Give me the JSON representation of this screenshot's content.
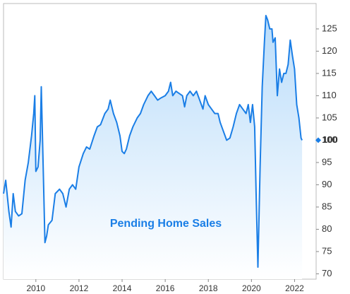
{
  "chart_data": {
    "type": "line",
    "title": "Pending Home Sales",
    "color": "#1a7ee6",
    "fill": true,
    "x": [
      2008.5,
      2008.6,
      2008.75,
      2008.85,
      2008.95,
      2009.05,
      2009.2,
      2009.35,
      2009.5,
      2009.65,
      2009.8,
      2009.9,
      2009.95,
      2010.0,
      2010.1,
      2010.2,
      2010.25,
      2010.33,
      2010.42,
      2010.5,
      2010.58,
      2010.75,
      2010.9,
      2011.1,
      2011.25,
      2011.4,
      2011.55,
      2011.7,
      2011.85,
      2012.0,
      2012.2,
      2012.35,
      2012.5,
      2012.7,
      2012.85,
      2013.0,
      2013.2,
      2013.35,
      2013.45,
      2013.6,
      2013.75,
      2013.9,
      2014.0,
      2014.1,
      2014.2,
      2014.35,
      2014.5,
      2014.7,
      2014.85,
      2015.0,
      2015.2,
      2015.35,
      2015.5,
      2015.65,
      2015.8,
      2016.0,
      2016.15,
      2016.25,
      2016.35,
      2016.5,
      2016.65,
      2016.8,
      2016.9,
      2017.0,
      2017.15,
      2017.3,
      2017.45,
      2017.6,
      2017.75,
      2017.85,
      2018.0,
      2018.15,
      2018.3,
      2018.45,
      2018.55,
      2018.7,
      2018.85,
      2019.0,
      2019.15,
      2019.3,
      2019.45,
      2019.6,
      2019.75,
      2019.85,
      2019.95,
      2020.05,
      2020.15,
      2020.22,
      2020.3,
      2020.4,
      2020.5,
      2020.6,
      2020.67,
      2020.75,
      2020.85,
      2020.95,
      2021.0,
      2021.1,
      2021.2,
      2021.3,
      2021.4,
      2021.5,
      2021.6,
      2021.7,
      2021.8,
      2021.9,
      2022.0,
      2022.1,
      2022.2,
      2022.3,
      2022.35
    ],
    "values": [
      88,
      91,
      84,
      80.5,
      88,
      84,
      83,
      83.5,
      91,
      95,
      101,
      106,
      110,
      93,
      94,
      100,
      112,
      96,
      77,
      78.5,
      81,
      82,
      88,
      89,
      88,
      85,
      89,
      90,
      89,
      94,
      97,
      98.5,
      98,
      101,
      103,
      103.5,
      106,
      107,
      109,
      106,
      104,
      101,
      97.5,
      97,
      98,
      101,
      103,
      105,
      106,
      108,
      110,
      111,
      110,
      109,
      109.5,
      110,
      111,
      113,
      110,
      111,
      110.5,
      110,
      107.5,
      110,
      111,
      110,
      111,
      109,
      107,
      110,
      108,
      107,
      106,
      106,
      104,
      102,
      100,
      100.5,
      103,
      106,
      108,
      107,
      106,
      108,
      104,
      108,
      103,
      87,
      71.5,
      94,
      112,
      122,
      128,
      127,
      125,
      125,
      122,
      123,
      110,
      116,
      113,
      115,
      115,
      117,
      122.5,
      119,
      116,
      108,
      105,
      100.5,
      100
    ],
    "xlim": [
      2008.5,
      2023
    ],
    "ylim": [
      68.8,
      130.7
    ],
    "xticks": [
      2010,
      2012,
      2014,
      2016,
      2018,
      2020,
      2022
    ],
    "yticks": [
      70,
      75,
      80,
      85,
      90,
      95,
      100,
      105,
      110,
      115,
      120,
      125
    ]
  }
}
